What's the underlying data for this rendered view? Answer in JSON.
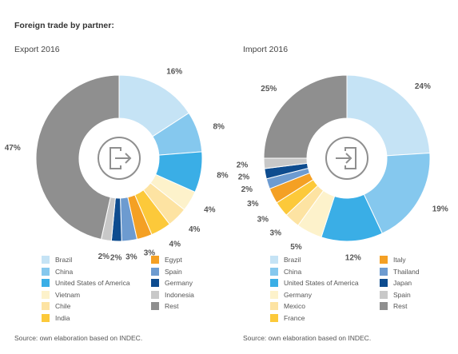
{
  "title": "Foreign trade by partner:",
  "colors": {
    "Brazil": "#c5e3f5",
    "China": "#85c8ee",
    "United States of America": "#3aaee6",
    "Vietnam": "#fdf2cb",
    "Chile": "#fde3a2",
    "India": "#fcc93a",
    "Egypt": "#f4a024",
    "Spain": "#6d9bd0",
    "Germany": "#fdf2cb",
    "Indonesia": "#c8c8c8",
    "Rest": "#8f8f8f",
    "Italy": "#f4a024",
    "Thailand": "#6d9bd0",
    "Japan": "#0e4c8f",
    "Mexico": "#fde3a2",
    "France": "#fcc93a"
  },
  "chart_data": [
    {
      "type": "pie",
      "style": "donut",
      "subtitle": "Export 2016",
      "source": "Source: own elaboration based on INDEC.",
      "center_icon": "export-arrow-icon",
      "slices": [
        {
          "name": "Brazil",
          "value": 16,
          "label": "16%",
          "color": "#c5e3f5"
        },
        {
          "name": "China",
          "value": 8,
          "label": "8%",
          "color": "#85c8ee"
        },
        {
          "name": "United States of America",
          "value": 8,
          "label": "8%",
          "color": "#3aaee6"
        },
        {
          "name": "Vietnam",
          "value": 4,
          "label": "4%",
          "color": "#fdf2cb"
        },
        {
          "name": "Chile",
          "value": 4,
          "label": "4%",
          "color": "#fde3a2"
        },
        {
          "name": "India",
          "value": 4,
          "label": "4%",
          "color": "#fcc93a"
        },
        {
          "name": "Egypt",
          "value": 3,
          "label": "3%",
          "color": "#f4a024"
        },
        {
          "name": "Spain",
          "value": 3,
          "label": "3%",
          "color": "#6d9bd0"
        },
        {
          "name": "Germany",
          "value": 2,
          "label": "2%",
          "color": "#0e4c8f"
        },
        {
          "name": "Indonesia",
          "value": 2,
          "label": "2%",
          "color": "#c8c8c8"
        },
        {
          "name": "Rest",
          "value": 47,
          "label": "47%",
          "color": "#8f8f8f"
        }
      ],
      "legend": [
        {
          "name": "Brazil",
          "color": "#c5e3f5"
        },
        {
          "name": "China",
          "color": "#85c8ee"
        },
        {
          "name": "United States of America",
          "color": "#3aaee6"
        },
        {
          "name": "Vietnam",
          "color": "#fdf2cb"
        },
        {
          "name": "Chile",
          "color": "#fde3a2"
        },
        {
          "name": "India",
          "color": "#fcc93a"
        },
        {
          "name": "Egypt",
          "color": "#f4a024"
        },
        {
          "name": "Spain",
          "color": "#6d9bd0"
        },
        {
          "name": "Germany",
          "color": "#0e4c8f"
        },
        {
          "name": "Indonesia",
          "color": "#c8c8c8"
        },
        {
          "name": "Rest",
          "color": "#8f8f8f"
        }
      ]
    },
    {
      "type": "pie",
      "style": "donut",
      "subtitle": "Import 2016",
      "source": "Source: own elaboration based on INDEC.",
      "center_icon": "import-arrow-icon",
      "slices": [
        {
          "name": "Brazil",
          "value": 24,
          "label": "24%",
          "color": "#c5e3f5"
        },
        {
          "name": "China",
          "value": 19,
          "label": "19%",
          "color": "#85c8ee"
        },
        {
          "name": "United States of America",
          "value": 12,
          "label": "12%",
          "color": "#3aaee6"
        },
        {
          "name": "Germany",
          "value": 5,
          "label": "5%",
          "color": "#fdf2cb"
        },
        {
          "name": "Mexico",
          "value": 3,
          "label": "3%",
          "color": "#fde3a2"
        },
        {
          "name": "France",
          "value": 3,
          "label": "3%",
          "color": "#fcc93a"
        },
        {
          "name": "Italy",
          "value": 3,
          "label": "3%",
          "color": "#f4a024"
        },
        {
          "name": "Thailand",
          "value": 2,
          "label": "2%",
          "color": "#6d9bd0"
        },
        {
          "name": "Japan",
          "value": 2,
          "label": "2%",
          "color": "#0e4c8f"
        },
        {
          "name": "Spain",
          "value": 2,
          "label": "2%",
          "color": "#c8c8c8"
        },
        {
          "name": "Rest",
          "value": 25,
          "label": "25%",
          "color": "#8f8f8f"
        }
      ],
      "legend": [
        {
          "name": "Brazil",
          "color": "#c5e3f5"
        },
        {
          "name": "China",
          "color": "#85c8ee"
        },
        {
          "name": "United States of America",
          "color": "#3aaee6"
        },
        {
          "name": "Germany",
          "color": "#fdf2cb"
        },
        {
          "name": "Mexico",
          "color": "#fde3a2"
        },
        {
          "name": "France",
          "color": "#fcc93a"
        },
        {
          "name": "Italy",
          "color": "#f4a024"
        },
        {
          "name": "Thailand",
          "color": "#6d9bd0"
        },
        {
          "name": "Japan",
          "color": "#0e4c8f"
        },
        {
          "name": "Spain",
          "color": "#c8c8c8"
        },
        {
          "name": "Rest",
          "color": "#8f8f8f"
        }
      ]
    }
  ]
}
